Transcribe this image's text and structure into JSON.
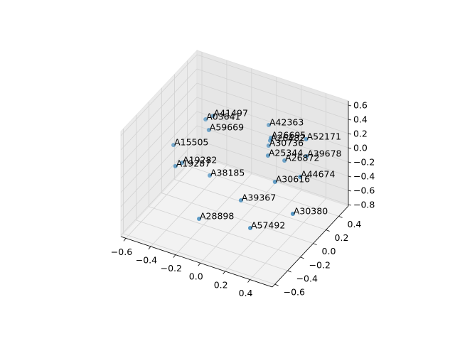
{
  "chart_data": {
    "type": "scatter3d",
    "color": "#1f77b4",
    "labels": [
      "A41497",
      "A03641",
      "A59669",
      "A15505",
      "A19282",
      "A19287",
      "A38185",
      "A42363",
      "A26695",
      "A26482",
      "A52171",
      "A30736",
      "A25344",
      "A39678",
      "A26872",
      "A44674",
      "A30616",
      "A39367",
      "A28898",
      "A30380",
      "A57492"
    ],
    "x": [
      -0.286,
      -0.341,
      -0.29,
      -0.481,
      -0.387,
      -0.408,
      -0.265,
      -0.012,
      0.014,
      0.056,
      0.299,
      0.015,
      0.099,
      0.34,
      0.168,
      0.298,
      0.172,
      0.009,
      -0.202,
      0.375,
      0.135
    ],
    "y": [
      0.114,
      0.105,
      0.057,
      -0.125,
      -0.174,
      -0.237,
      0.022,
      0.454,
      0.436,
      0.343,
      0.435,
      0.399,
      0.226,
      0.362,
      0.35,
      0.343,
      0.194,
      -0.022,
      -0.267,
      0.079,
      -0.121
    ],
    "z": [
      0.364,
      0.29,
      0.216,
      0.068,
      -0.08,
      -0.08,
      -0.376,
      0.068,
      -0.08,
      -0.006,
      0.068,
      -0.154,
      -0.08,
      -0.08,
      -0.228,
      -0.376,
      -0.376,
      -0.524,
      -0.672,
      -0.598,
      -0.746
    ],
    "xlim": [
      -0.64,
      0.58
    ],
    "ylim": [
      -0.64,
      0.55
    ],
    "zlim": [
      -0.82,
      0.66
    ],
    "xticks": [
      {
        "value": -0.6,
        "label": "−0.6"
      },
      {
        "value": -0.4,
        "label": "−0.4"
      },
      {
        "value": -0.2,
        "label": "−0.2"
      },
      {
        "value": 0,
        "label": "0.0"
      },
      0.2,
      0.4
    ],
    "yticks": [
      {
        "value": -0.6,
        "label": "−0.6"
      },
      {
        "value": -0.4,
        "label": "−0.4"
      },
      {
        "value": -0.2,
        "label": "−0.2"
      },
      {
        "value": 0,
        "label": "0.0"
      },
      0.2,
      0.4
    ],
    "zticks": [
      {
        "value": -0.8,
        "label": "−0.8"
      },
      {
        "value": -0.6,
        "label": "−0.6"
      },
      {
        "value": -0.4,
        "label": "−0.4"
      },
      {
        "value": -0.2,
        "label": "−0.2"
      },
      {
        "value": 0,
        "label": "0.0"
      },
      0.2,
      0.4,
      0.6
    ],
    "grid": true
  }
}
